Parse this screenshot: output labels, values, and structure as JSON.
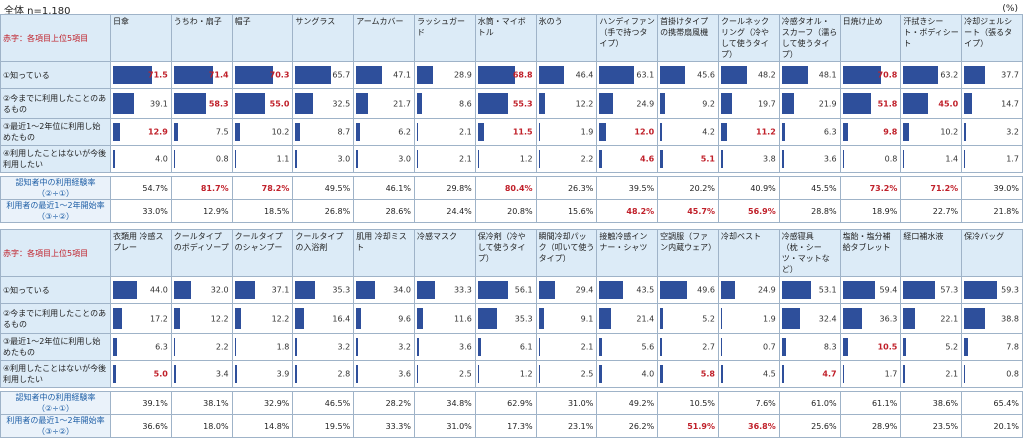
{
  "header": {
    "label": "全体 n=1,180",
    "unit": "(%)"
  },
  "chart_data": [
    {
      "type": "table",
      "note": "赤字：各項目上位5項目",
      "columns": [
        "日傘",
        "うちわ・扇子",
        "帽子",
        "サングラス",
        "アームカバー",
        "ラッシュガード",
        "水筒・マイボトル",
        "氷のう",
        "ハンディファン（手で持つタイプ）",
        "首掛けタイプの携帯扇風機",
        "クールネックリング（冷やして使うタイプ）",
        "冷感タオル・スカーフ（濡らして使うタイプ）",
        "日焼け止め",
        "汗拭きシート・ボディシート",
        "冷却ジェルシート（張るタイプ）"
      ],
      "rows": [
        {
          "label": "①知っている",
          "values": [
            71.5,
            71.4,
            70.3,
            65.7,
            47.1,
            28.9,
            68.8,
            46.4,
            63.1,
            45.6,
            48.2,
            48.1,
            70.8,
            63.2,
            37.7
          ],
          "highlight": [
            0,
            1,
            2,
            6,
            12
          ]
        },
        {
          "label": "②今までに利用したことのあるもの",
          "values": [
            39.1,
            58.3,
            55.0,
            32.5,
            21.7,
            8.6,
            55.3,
            12.2,
            24.9,
            9.2,
            19.7,
            21.9,
            51.8,
            45.0,
            14.7
          ],
          "highlight": [
            1,
            2,
            6,
            12,
            13
          ]
        },
        {
          "label": "③最近1～2年位に利用し始めたもの",
          "values": [
            12.9,
            7.5,
            10.2,
            8.7,
            6.2,
            2.1,
            11.5,
            1.9,
            12.0,
            4.2,
            11.2,
            6.3,
            9.8,
            10.2,
            3.2
          ],
          "highlight": [
            0,
            6,
            8,
            10,
            12
          ]
        },
        {
          "label": "④利用したことはないが今後利用したい",
          "values": [
            4.0,
            0.8,
            1.1,
            3.0,
            3.0,
            2.1,
            1.2,
            2.2,
            4.6,
            5.1,
            3.8,
            3.6,
            0.8,
            1.4,
            1.7
          ],
          "highlight": [
            8,
            9
          ]
        }
      ],
      "summary": [
        {
          "label": "認知者中の利用経験率（②÷①）",
          "values": [
            "54.7%",
            "81.7%",
            "78.2%",
            "49.5%",
            "46.1%",
            "29.8%",
            "80.4%",
            "26.3%",
            "39.5%",
            "20.2%",
            "40.9%",
            "45.5%",
            "73.2%",
            "71.2%",
            "39.0%"
          ],
          "highlight": [
            1,
            2,
            6,
            12,
            13
          ]
        },
        {
          "label": "利用者の最近1～2年開始率（③÷②）",
          "values": [
            "33.0%",
            "12.9%",
            "18.5%",
            "26.8%",
            "28.6%",
            "24.4%",
            "20.8%",
            "15.6%",
            "48.2%",
            "45.7%",
            "56.9%",
            "28.8%",
            "18.9%",
            "22.7%",
            "21.8%"
          ],
          "highlight": [
            8,
            9,
            10
          ]
        }
      ]
    },
    {
      "type": "table",
      "note": "赤字：各項目上位5項目",
      "columns": [
        "衣類用 冷感スプレー",
        "クールタイプのボディソープ",
        "クールタイプのシャンプー",
        "クールタイプの入浴剤",
        "肌用 冷却ミスト",
        "冷感マスク",
        "保冷剤（冷やして使うタイプ）",
        "瞬間冷却パック（叩いて使うタイプ）",
        "接触冷感インナー・シャツ",
        "空調服（ファン内蔵ウェア）",
        "冷却ベスト",
        "冷感寝具（枕・シーツ・マットなど）",
        "塩飴・塩分補給タブレット",
        "経口補水液",
        "保冷バッグ"
      ],
      "rows": [
        {
          "label": "①知っている",
          "values": [
            44.0,
            32.0,
            37.1,
            35.3,
            34.0,
            33.3,
            56.1,
            29.4,
            43.5,
            49.6,
            24.9,
            53.1,
            59.4,
            57.3,
            59.3
          ],
          "highlight": []
        },
        {
          "label": "②今までに利用したことのあるもの",
          "values": [
            17.2,
            12.2,
            12.2,
            16.4,
            9.6,
            11.6,
            35.3,
            9.1,
            21.4,
            5.2,
            1.9,
            32.4,
            36.3,
            22.1,
            38.8
          ],
          "highlight": []
        },
        {
          "label": "③最近1～2年位に利用し始めたもの",
          "values": [
            6.3,
            2.2,
            1.8,
            3.2,
            3.2,
            3.6,
            6.1,
            2.1,
            5.6,
            2.7,
            0.7,
            8.3,
            10.5,
            5.2,
            7.8
          ],
          "highlight": [
            12
          ]
        },
        {
          "label": "④利用したことはないが今後利用したい",
          "values": [
            5.0,
            3.4,
            3.9,
            2.8,
            3.6,
            2.5,
            1.2,
            2.5,
            4.0,
            5.8,
            4.5,
            4.7,
            1.7,
            2.1,
            0.8
          ],
          "highlight": [
            0,
            9,
            11
          ]
        }
      ],
      "summary": [
        {
          "label": "認知者中の利用経験率（②÷①）",
          "values": [
            "39.1%",
            "38.1%",
            "32.9%",
            "46.5%",
            "28.2%",
            "34.8%",
            "62.9%",
            "31.0%",
            "49.2%",
            "10.5%",
            "7.6%",
            "61.0%",
            "61.1%",
            "38.6%",
            "65.4%"
          ],
          "highlight": []
        },
        {
          "label": "利用者の最近1～2年開始率（③÷②）",
          "values": [
            "36.6%",
            "18.0%",
            "14.8%",
            "19.5%",
            "33.3%",
            "31.0%",
            "17.3%",
            "23.1%",
            "26.2%",
            "51.9%",
            "36.8%",
            "25.6%",
            "28.9%",
            "23.5%",
            "20.1%"
          ],
          "highlight": [
            9,
            10
          ]
        }
      ]
    }
  ]
}
